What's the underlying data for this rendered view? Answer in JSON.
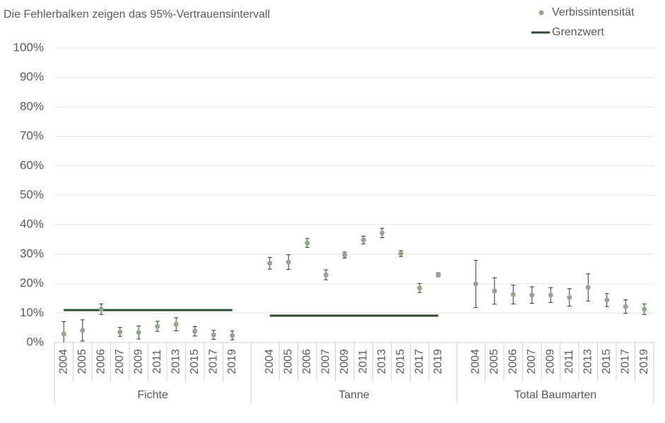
{
  "chart_data": {
    "type": "scatter",
    "title": "Die Fehlerbalken zeigen das 95%-Vertrauensintervall",
    "groups": [
      "Fichte",
      "Tanne",
      "Total Baumarten"
    ],
    "categories": [
      "2004",
      "2005",
      "2006",
      "2007",
      "2009",
      "2011",
      "2013",
      "2015",
      "2017",
      "2019",
      null,
      "2004",
      "2005",
      "2006",
      "2007",
      "2009",
      "2011",
      "2013",
      "2015",
      "2017",
      "2019",
      null,
      "2004",
      "2005",
      "2006",
      "2007",
      "2009",
      "2011",
      "2013",
      "2015",
      "2017",
      "2019"
    ],
    "series": [
      {
        "name": "Verbissintensität",
        "color": "#8fa98a",
        "values": [
          2.9,
          4.1,
          11.3,
          3.6,
          3.4,
          5.5,
          6.2,
          3.8,
          2.6,
          2.4,
          null,
          26.9,
          27.3,
          33.8,
          23.0,
          29.7,
          34.8,
          37.2,
          30.2,
          18.5,
          23.0,
          null,
          19.9,
          17.5,
          16.3,
          16.1,
          16.1,
          15.3,
          18.7,
          14.4,
          12.2,
          11.3
        ],
        "errors": [
          4.2,
          3.6,
          1.8,
          1.5,
          2.2,
          1.7,
          2.2,
          1.6,
          1.5,
          1.5,
          null,
          2.0,
          2.5,
          1.5,
          1.7,
          1.0,
          1.3,
          1.6,
          1.0,
          1.5,
          0.7,
          null,
          8.0,
          4.5,
          3.2,
          2.8,
          2.5,
          3.0,
          4.6,
          2.2,
          2.3,
          1.8
        ]
      },
      {
        "name": "Grenzwert",
        "color": "#2e4a31",
        "values": [
          11.0,
          9.1,
          null
        ]
      }
    ],
    "ylim": [
      0,
      100
    ],
    "yticks": [
      {
        "value": 0,
        "label": "0%"
      },
      {
        "value": 10,
        "label": "10%"
      },
      {
        "value": 20,
        "label": "20%"
      },
      {
        "value": 30,
        "label": "30%"
      },
      {
        "value": 40,
        "label": "40%"
      },
      {
        "value": 50,
        "label": "50%"
      },
      {
        "value": 60,
        "label": "60%"
      },
      {
        "value": 70,
        "label": "70%"
      },
      {
        "value": 80,
        "label": "80%"
      },
      {
        "value": 90,
        "label": "90%"
      },
      {
        "value": 100,
        "label": "100%"
      }
    ],
    "grid": true,
    "legend": "upper right"
  }
}
